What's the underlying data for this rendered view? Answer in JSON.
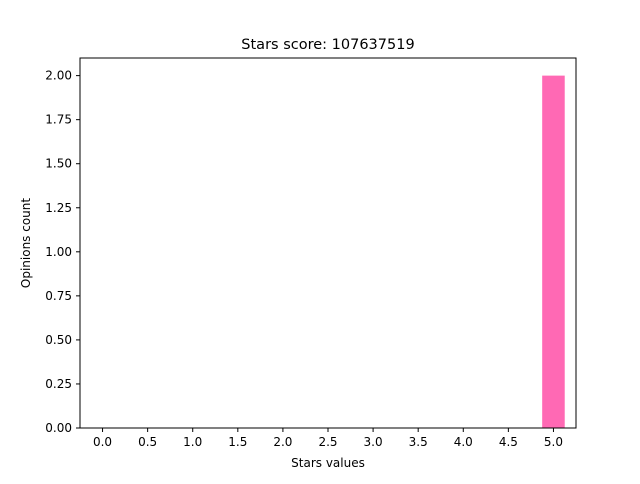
{
  "chart_data": {
    "type": "bar",
    "title": "Stars score: 107637519",
    "xlabel": "Stars values",
    "ylabel": "Opinions count",
    "x": [
      5.0
    ],
    "values": [
      2
    ],
    "bar_width": 0.25,
    "xlim": [
      -0.25,
      5.25
    ],
    "ylim": [
      0,
      2.1
    ],
    "xticks": [
      "0.0",
      "0.5",
      "1.0",
      "1.5",
      "2.0",
      "2.5",
      "3.0",
      "3.5",
      "4.0",
      "4.5",
      "5.0"
    ],
    "yticks": [
      "0.00",
      "0.25",
      "0.50",
      "0.75",
      "1.00",
      "1.25",
      "1.50",
      "1.75",
      "2.00"
    ],
    "bar_color": "#ff69b4",
    "grid": false,
    "legend": "none"
  }
}
